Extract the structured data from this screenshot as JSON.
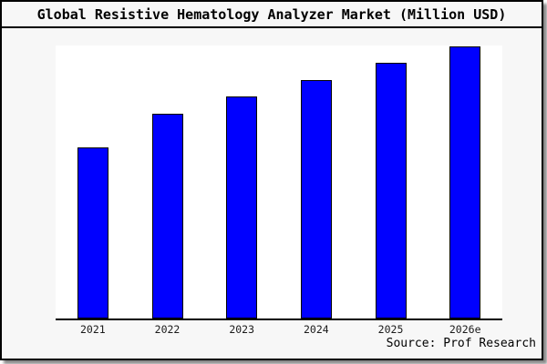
{
  "window": {
    "background_color": "#f7f7f7",
    "plot_background_color": "#ffffff",
    "frame_border_color": "#000000"
  },
  "header": {
    "title": "Global Resistive Hematology Analyzer Market (Million USD)"
  },
  "chart_data": {
    "type": "bar",
    "title": "Global Resistive Hematology Analyzer Market (Million USD)",
    "categories": [
      "2021",
      "2022",
      "2023",
      "2024",
      "2025",
      "2026e"
    ],
    "values": [
      62.9,
      75.3,
      81.6,
      87.6,
      94,
      100
    ],
    "value_scale": "relative height, tallest bar (2026e) = 100; y-axis has no ticks or labels in source",
    "xlabel": "",
    "ylabel": "",
    "ylim": [
      0,
      100
    ],
    "grid": false,
    "legend": "none",
    "bar_color": "#0000ff",
    "bar_border_color": "#000000"
  },
  "footer": {
    "source_label": "Source: Prof Research"
  }
}
